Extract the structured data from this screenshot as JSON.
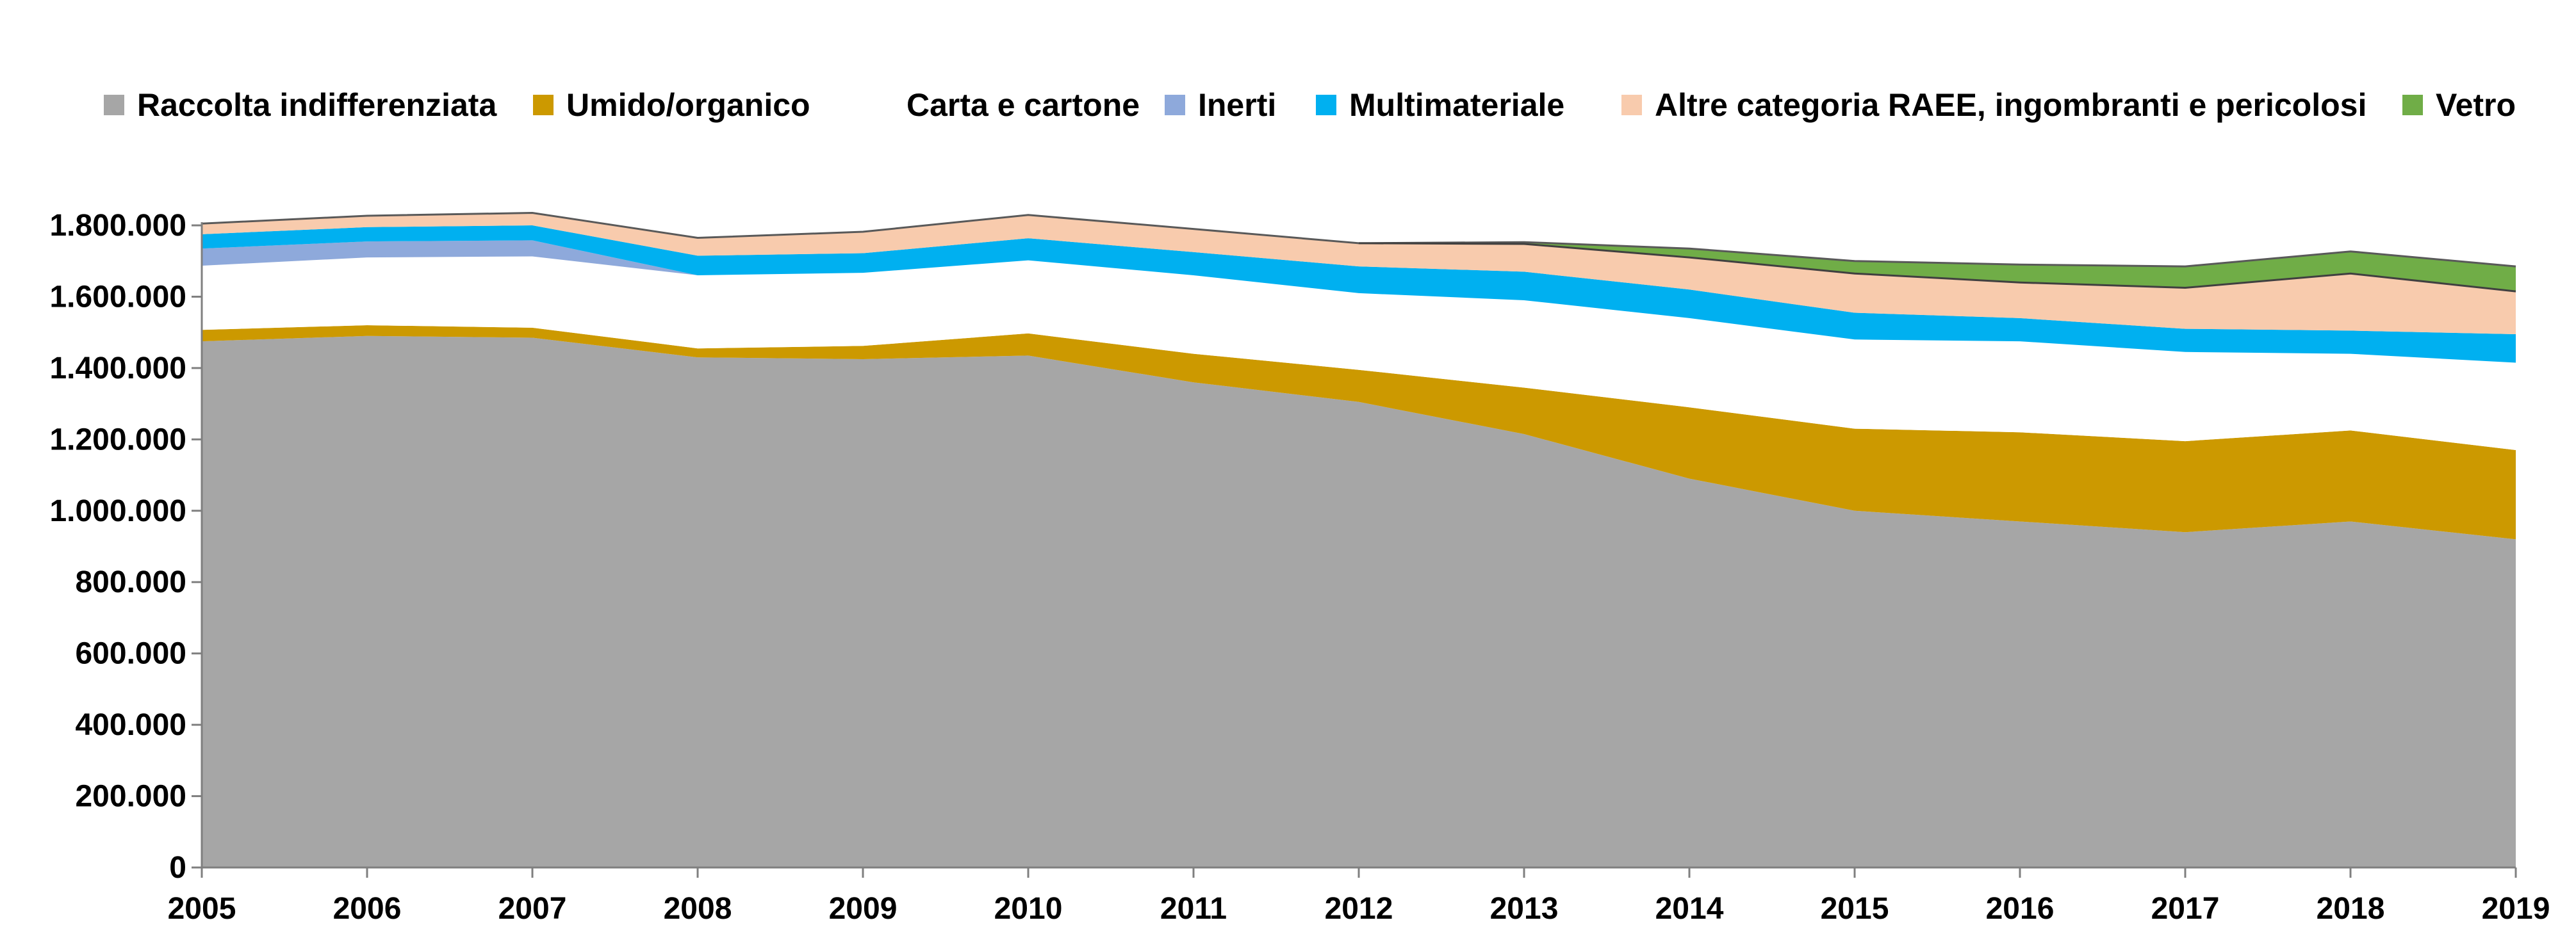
{
  "chart_data": {
    "type": "area",
    "stacked": true,
    "title": "",
    "xlabel": "",
    "ylabel": "",
    "ylim": [
      0,
      1800000
    ],
    "yticks": [
      0,
      200000,
      400000,
      600000,
      800000,
      1000000,
      1200000,
      1400000,
      1600000,
      1800000
    ],
    "ytick_labels": [
      "0",
      "200.000",
      "400.000",
      "600.000",
      "800.000",
      "1.000.000",
      "1.200.000",
      "1.400.000",
      "1.600.000",
      "1.800.000"
    ],
    "grid": false,
    "legend_position": "top",
    "x": [
      "2005",
      "2006",
      "2007",
      "2008",
      "2009",
      "2010",
      "2011",
      "2012",
      "2013",
      "2014",
      "2015",
      "2016",
      "2017",
      "2018",
      "2019"
    ],
    "series": [
      {
        "name": "Raccolta indifferenziata",
        "color": "#A6A6A6",
        "values": [
          1475000,
          1490000,
          1485000,
          1430000,
          1425000,
          1435000,
          1360000,
          1305000,
          1215000,
          1090000,
          1000000,
          970000,
          940000,
          970000,
          920000
        ]
      },
      {
        "name": "Umido/organico",
        "color": "#CC9900",
        "values": [
          32000,
          30000,
          28000,
          25000,
          37000,
          62000,
          80000,
          90000,
          130000,
          200000,
          230000,
          250000,
          255000,
          255000,
          250000
        ]
      },
      {
        "name": "Carta e cartone",
        "color": "#FFFFFF",
        "values": [
          180000,
          190000,
          200000,
          205000,
          205000,
          205000,
          220000,
          215000,
          245000,
          250000,
          250000,
          255000,
          250000,
          215000,
          245000
        ]
      },
      {
        "name": "Inerti",
        "color": "#8EA9DB",
        "values": [
          48000,
          45000,
          45000,
          0,
          0,
          0,
          0,
          0,
          0,
          0,
          0,
          0,
          0,
          0,
          0
        ]
      },
      {
        "name": "Multimateriale",
        "color": "#00B0F0",
        "values": [
          40000,
          40000,
          42000,
          55000,
          55000,
          62000,
          65000,
          75000,
          80000,
          80000,
          75000,
          65000,
          65000,
          65000,
          80000
        ]
      },
      {
        "name": "Altre categoria RAEE, ingombranti e pericolosi",
        "color": "#F8CBAD",
        "values": [
          30000,
          32000,
          35000,
          50000,
          60000,
          65000,
          65000,
          65000,
          78000,
          90000,
          110000,
          100000,
          115000,
          160000,
          120000
        ]
      },
      {
        "name": "Vetro",
        "color": "#70AD47",
        "values": [
          0,
          0,
          0,
          0,
          0,
          0,
          0,
          0,
          5000,
          25000,
          35000,
          50000,
          60000,
          62000,
          70000
        ]
      }
    ]
  }
}
